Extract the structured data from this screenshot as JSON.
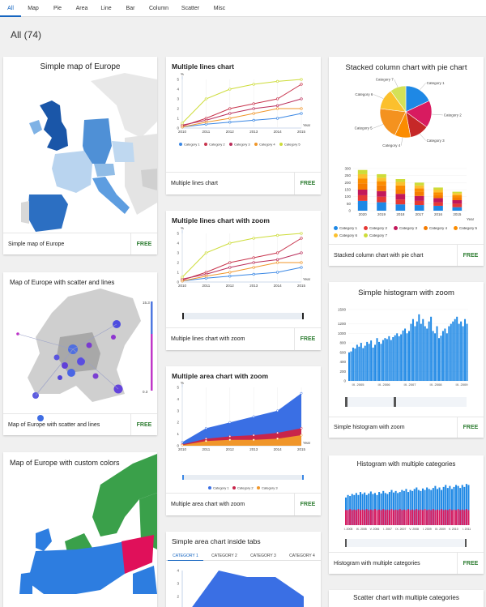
{
  "nav": {
    "tabs": [
      {
        "label": "All"
      },
      {
        "label": "Map"
      },
      {
        "label": "Pie"
      },
      {
        "label": "Area"
      },
      {
        "label": "Line"
      },
      {
        "label": "Bar"
      },
      {
        "label": "Column"
      },
      {
        "label": "Scatter"
      },
      {
        "label": "Misc"
      }
    ]
  },
  "heading": {
    "count_label": "All (74)"
  },
  "free_label": "FREE",
  "colors": {
    "accent": "#1565c0",
    "free": "#2e7d32",
    "series": [
      "#3a87e4",
      "#c8354d",
      "#b92d5a",
      "#f0962a",
      "#cddc39"
    ]
  },
  "cards": {
    "map_europe": {
      "title": "Simple map of Europe",
      "name": "Simple map of Europe"
    },
    "map_scatter": {
      "title": "Map of Europe with scatter and lines",
      "name": "Map of Europe with scatter and lines",
      "scale_max": "15.3",
      "scale_min": "0.3"
    },
    "map_custom": {
      "title": "Map of Europe with custom colors"
    },
    "multi_lines": {
      "title": "Multiple lines chart",
      "name": "Multiple lines chart"
    },
    "multi_lines_zoom": {
      "title": "Multiple lines chart with zoom",
      "name": "Multiple lines chart with zoom"
    },
    "multi_area_zoom": {
      "title": "Multiple area chart with zoom",
      "name": "Multiple area chart with zoom"
    },
    "area_tabs": {
      "title": "Simple area chart inside tabs",
      "tabs": [
        "CATEGORY 1",
        "CATEGORY 2",
        "CATEGORY 3",
        "CATEGORY 4"
      ]
    },
    "stacked_pie": {
      "title": "Stacked column chart with pie chart",
      "name": "Stacked column chart with pie chart"
    },
    "hist_zoom": {
      "title": "Simple histogram with zoom",
      "name": "Simple histogram with zoom"
    },
    "hist_multi": {
      "title": "Histogram with multiple categories",
      "name": "Histogram with multiple categories"
    },
    "scatter_multi": {
      "title": "Scatter chart with multiple categories"
    }
  },
  "chart_data": [
    {
      "type": "line",
      "id": "multi_lines",
      "x": [
        2010,
        2011,
        2012,
        2013,
        2014,
        2015
      ],
      "xlabel": "Year",
      "ylabel": "%",
      "ylim": [
        0,
        5
      ],
      "yticks": [
        0,
        1,
        2,
        3,
        4,
        5
      ],
      "series": [
        {
          "name": "Category 1",
          "values": [
            0.1,
            0.4,
            0.6,
            0.8,
            1.0,
            1.5
          ]
        },
        {
          "name": "Category 2",
          "values": [
            0.2,
            1.0,
            2.0,
            2.5,
            3.0,
            4.5
          ]
        },
        {
          "name": "Category 3",
          "values": [
            0.3,
            0.8,
            1.5,
            2.0,
            2.3,
            3.0
          ]
        },
        {
          "name": "Category 4",
          "values": [
            0.1,
            0.6,
            1.0,
            1.5,
            2.0,
            2.0
          ]
        },
        {
          "name": "Category 5",
          "values": [
            0.5,
            3.0,
            4.0,
            4.5,
            4.8,
            5.0
          ]
        }
      ]
    },
    {
      "type": "line",
      "id": "multi_lines_zoom",
      "x": [
        2010,
        2011,
        2012,
        2013,
        2014,
        2015
      ],
      "xlabel": "Year",
      "ylabel": "%",
      "ylim": [
        0,
        5
      ],
      "yticks": [
        0,
        1,
        2,
        3,
        4,
        5
      ],
      "series": [
        {
          "name": "Category 1",
          "values": [
            0.1,
            0.4,
            0.6,
            0.8,
            1.0,
            1.5
          ]
        },
        {
          "name": "Category 2",
          "values": [
            0.2,
            1.0,
            2.0,
            2.5,
            3.0,
            4.5
          ]
        },
        {
          "name": "Category 3",
          "values": [
            0.3,
            0.8,
            1.5,
            2.0,
            2.3,
            3.0
          ]
        },
        {
          "name": "Category 4",
          "values": [
            0.1,
            0.6,
            1.0,
            1.5,
            2.0,
            2.0
          ]
        },
        {
          "name": "Category 5",
          "values": [
            0.5,
            3.0,
            4.0,
            4.5,
            4.8,
            5.0
          ]
        }
      ]
    },
    {
      "type": "area",
      "id": "multi_area_zoom",
      "x": [
        2010,
        2011,
        2012,
        2013,
        2014,
        2015
      ],
      "xlabel": "Year",
      "ylabel": "%",
      "ylim": [
        0,
        5
      ],
      "yticks": [
        0,
        1,
        2,
        3,
        4,
        5
      ],
      "series": [
        {
          "name": "Category 1",
          "values": [
            0.3,
            1.5,
            2.0,
            2.5,
            3.0,
            4.5
          ]
        },
        {
          "name": "Category 2",
          "values": [
            0.1,
            0.6,
            0.8,
            0.9,
            1.1,
            1.5
          ]
        },
        {
          "name": "Category 3",
          "values": [
            0.05,
            0.4,
            0.5,
            0.5,
            0.6,
            0.9
          ]
        }
      ]
    },
    {
      "type": "area",
      "id": "area_tabs",
      "ylim": [
        0,
        4
      ],
      "yticks": [
        2,
        3,
        4
      ],
      "series": [
        {
          "name": "Category 1",
          "values": [
            1.0,
            4.0,
            3.5,
            3.5,
            2.0
          ]
        }
      ]
    },
    {
      "type": "bar",
      "id": "stacked_columns",
      "categories": [
        2020,
        2019,
        2018,
        2017,
        2016,
        2015
      ],
      "xlabel": "Year",
      "ylim": [
        0,
        300
      ],
      "yticks": [
        0,
        50,
        100,
        150,
        200,
        250,
        300
      ],
      "series": [
        {
          "name": "Category 1",
          "values": [
            70,
            60,
            45,
            40,
            35,
            25
          ]
        },
        {
          "name": "Category 2",
          "values": [
            40,
            40,
            35,
            30,
            25,
            25
          ]
        },
        {
          "name": "Category 3",
          "values": [
            40,
            40,
            40,
            35,
            30,
            25
          ]
        },
        {
          "name": "Category 4",
          "values": [
            45,
            40,
            30,
            30,
            20,
            20
          ]
        },
        {
          "name": "Category 5",
          "values": [
            35,
            30,
            30,
            25,
            20,
            15
          ]
        },
        {
          "name": "Category 6",
          "values": [
            30,
            25,
            25,
            20,
            20,
            15
          ]
        },
        {
          "name": "Category 7",
          "values": [
            30,
            25,
            20,
            20,
            15,
            10
          ]
        }
      ]
    },
    {
      "type": "pie",
      "id": "pie",
      "labels": [
        "Category 1",
        "Category 2",
        "Category 3",
        "Category 4",
        "Category 5",
        "Category 6",
        "Category 7"
      ],
      "values": [
        18,
        17,
        12,
        10,
        20,
        13,
        10
      ]
    },
    {
      "type": "bar",
      "id": "hist_zoom",
      "xtick_labels": [
        "IX. 2005",
        "IX. 2006",
        "IX. 2007",
        "IX. 2008",
        "IX. 2009"
      ],
      "ylim": [
        0,
        1500
      ],
      "yticks": [
        0,
        200,
        400,
        600,
        800,
        1000,
        1200,
        1500
      ],
      "values": [
        600,
        620,
        700,
        680,
        760,
        720,
        800,
        690,
        740,
        820,
        780,
        850,
        700,
        760,
        900,
        820,
        780,
        860,
        900,
        880,
        940,
        860,
        920,
        960,
        1000,
        940,
        980,
        1060,
        1100,
        1000,
        1050,
        1200,
        1300,
        1150,
        1250,
        1400,
        1200,
        1300,
        1150,
        1100,
        1250,
        1350,
        1050,
        1000,
        1150,
        900,
        950,
        1050,
        1100,
        1000,
        1150,
        1200,
        1250,
        1300,
        1350,
        1200,
        1250,
        1150,
        1300,
        1200
      ]
    },
    {
      "type": "bar",
      "id": "hist_multi",
      "xtick_labels": [
        "I. 2005",
        "IX. 2005",
        "V. 2006",
        "I. 2007",
        "IX. 2007",
        "V. 2008",
        "I. 2009",
        "IX. 2009",
        "V. 2010",
        "I. 2011"
      ],
      "series": [
        {
          "name": "Category 1",
          "values": [
            0.55,
            0.6,
            0.58,
            0.62,
            0.6,
            0.64,
            0.6,
            0.66,
            0.62,
            0.65,
            0.6,
            0.63,
            0.67,
            0.62,
            0.64,
            0.6,
            0.66,
            0.63,
            0.68,
            0.64,
            0.62,
            0.66,
            0.7,
            0.65,
            0.68,
            0.64,
            0.66,
            0.7,
            0.68,
            0.72,
            0.66,
            0.7,
            0.68,
            0.72,
            0.75,
            0.7,
            0.68,
            0.73,
            0.7,
            0.75,
            0.72,
            0.7,
            0.74,
            0.78,
            0.72,
            0.75,
            0.7,
            0.76,
            0.8,
            0.74,
            0.78,
            0.72,
            0.76,
            0.8,
            0.78,
            0.74,
            0.8,
            0.76,
            0.82,
            0.8
          ]
        },
        {
          "name": "Category 2",
          "values": [
            0.3,
            0.3,
            0.32,
            0.3,
            0.31,
            0.3,
            0.32,
            0.3,
            0.31,
            0.3,
            0.32,
            0.3,
            0.31,
            0.3,
            0.32,
            0.3,
            0.31,
            0.3,
            0.32,
            0.3,
            0.31,
            0.3,
            0.32,
            0.3,
            0.31,
            0.3,
            0.32,
            0.3,
            0.31,
            0.3,
            0.32,
            0.3,
            0.31,
            0.3,
            0.32,
            0.3,
            0.31,
            0.3,
            0.32,
            0.3,
            0.31,
            0.3,
            0.32,
            0.3,
            0.31,
            0.3,
            0.32,
            0.3,
            0.31,
            0.3,
            0.32,
            0.3,
            0.31,
            0.3,
            0.32,
            0.3,
            0.31,
            0.3,
            0.32,
            0.3
          ]
        }
      ]
    }
  ]
}
